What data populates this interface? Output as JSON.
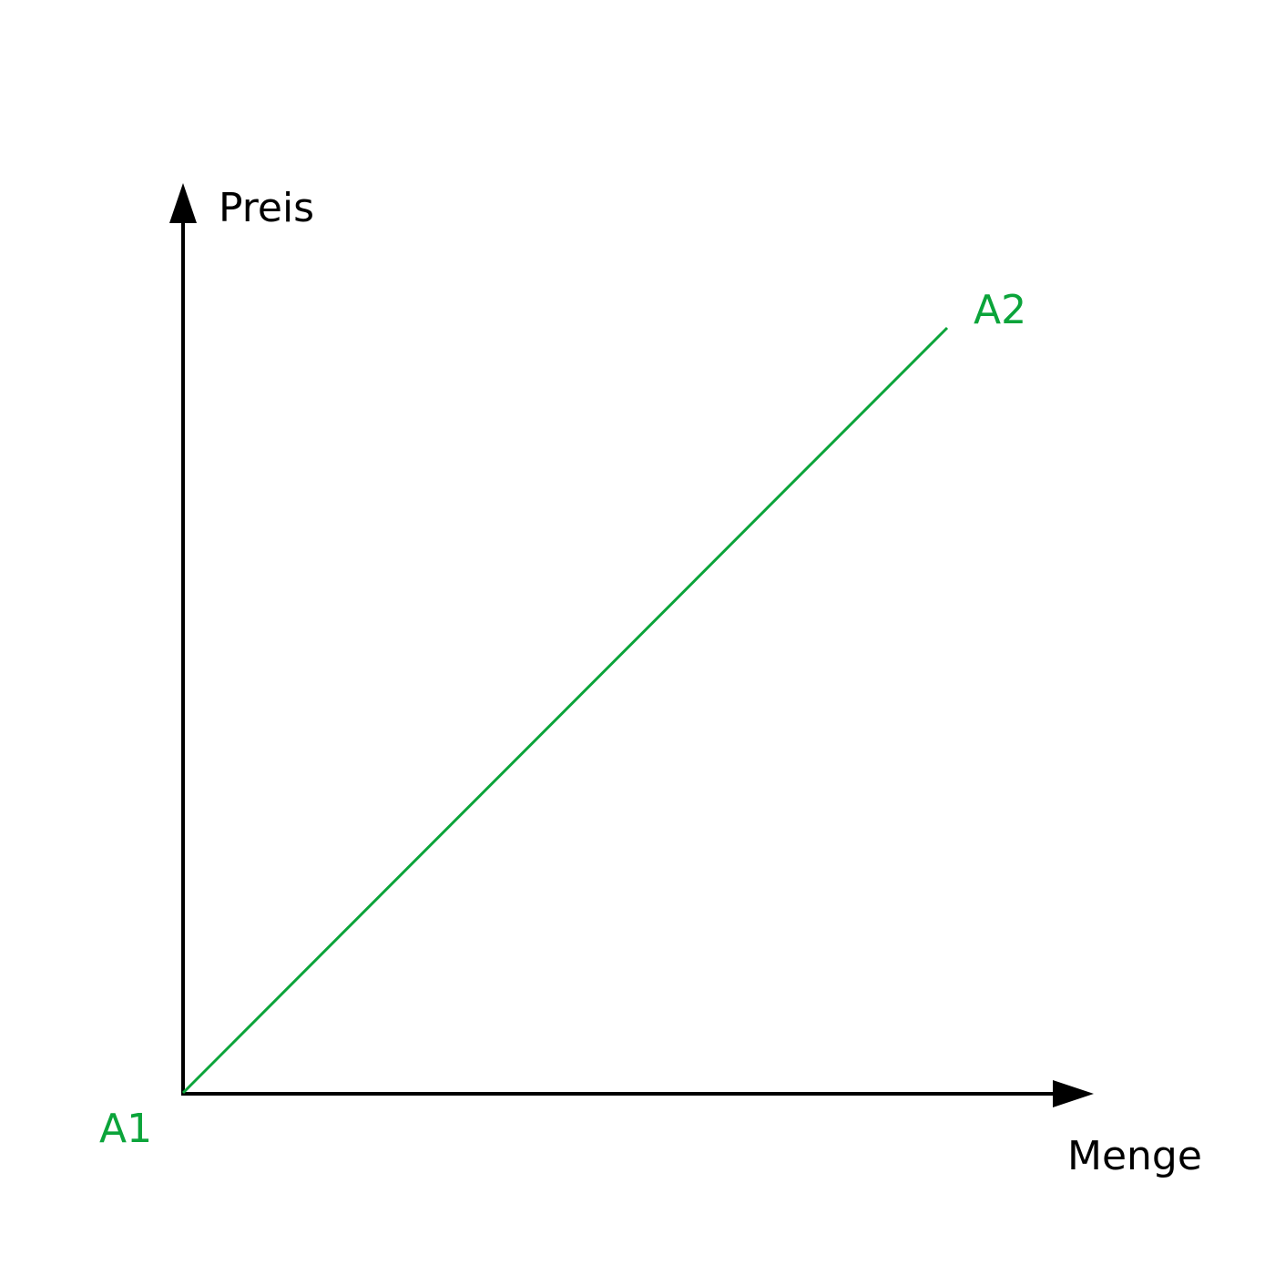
{
  "axes": {
    "y_label": "Preis",
    "x_label": "Menge",
    "color": "#000000"
  },
  "line": {
    "color": "#0ba43a",
    "start_label": "A1",
    "end_label": "A2"
  }
}
